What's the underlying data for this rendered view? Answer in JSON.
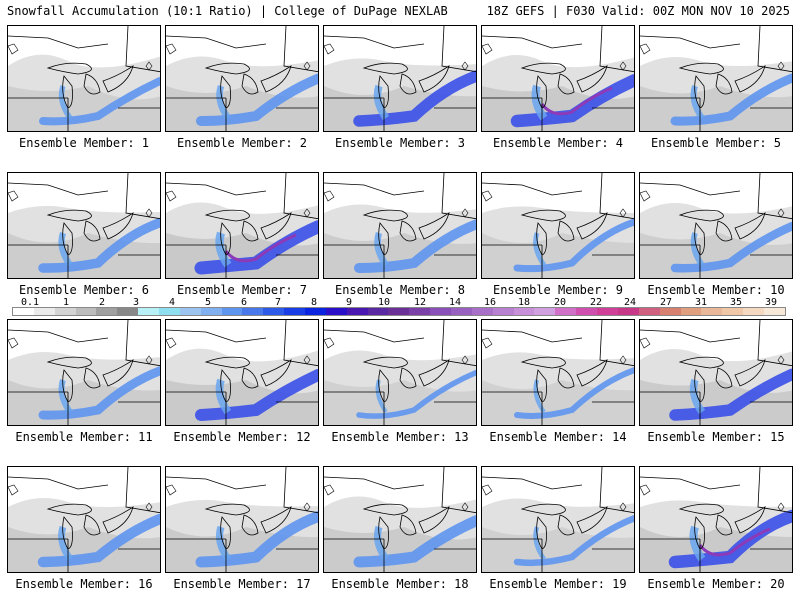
{
  "header": {
    "title_left": "Snowfall Accumulation (10:1 Ratio) | College of DuPage NEXLAB",
    "title_right": "18Z GEFS | F030 Valid: 00Z MON NOV 10 2025"
  },
  "map": {
    "icon": "great-lakes-map-icon"
  },
  "members": [
    {
      "label": "Ensemble Member: 1",
      "intensity": 0.4
    },
    {
      "label": "Ensemble Member: 2",
      "intensity": 0.6
    },
    {
      "label": "Ensemble Member: 3",
      "intensity": 0.75
    },
    {
      "label": "Ensemble Member: 4",
      "intensity": 0.85
    },
    {
      "label": "Ensemble Member: 5",
      "intensity": 0.5
    },
    {
      "label": "Ensemble Member: 6",
      "intensity": 0.55
    },
    {
      "label": "Ensemble Member: 7",
      "intensity": 0.9
    },
    {
      "label": "Ensemble Member: 8",
      "intensity": 0.6
    },
    {
      "label": "Ensemble Member: 9",
      "intensity": 0.3
    },
    {
      "label": "Ensemble Member: 10",
      "intensity": 0.45
    },
    {
      "label": "Ensemble Member: 11",
      "intensity": 0.5
    },
    {
      "label": "Ensemble Member: 12",
      "intensity": 0.8
    },
    {
      "label": "Ensemble Member: 13",
      "intensity": 0.15
    },
    {
      "label": "Ensemble Member: 14",
      "intensity": 0.2
    },
    {
      "label": "Ensemble Member: 15",
      "intensity": 0.75
    },
    {
      "label": "Ensemble Member: 16",
      "intensity": 0.65
    },
    {
      "label": "Ensemble Member: 17",
      "intensity": 0.7
    },
    {
      "label": "Ensemble Member: 18",
      "intensity": 0.7
    },
    {
      "label": "Ensemble Member: 19",
      "intensity": 0.25
    },
    {
      "label": "Ensemble Member: 20",
      "intensity": 0.85
    }
  ],
  "colorbar": {
    "ticks": [
      "0.1",
      "1",
      "2",
      "3",
      "4",
      "5",
      "6",
      "7",
      "8",
      "9",
      "10",
      "12",
      "14",
      "16",
      "18",
      "20",
      "22",
      "24",
      "27",
      "31",
      "35",
      "39"
    ],
    "colors": [
      "#ffffff",
      "#ebebeb",
      "#d4d4d4",
      "#bdbdbd",
      "#a0a0a0",
      "#888888",
      "#b8f0f8",
      "#8ee0f0",
      "#9cc4f0",
      "#80b0f0",
      "#5e95ef",
      "#4878ea",
      "#2e5ae8",
      "#1a3ee6",
      "#0a24e0",
      "#2a10c8",
      "#4a18b0",
      "#5a28a0",
      "#6a3098",
      "#7a40a8",
      "#8850b8",
      "#9860c0",
      "#a870c8",
      "#b880d0",
      "#c890d8",
      "#d0a0e0",
      "#d070c8",
      "#d050b0",
      "#d04098",
      "#c83888",
      "#d06080",
      "#d88070",
      "#e0a080",
      "#e8b898",
      "#f0c8a8",
      "#f4d8c0",
      "#f8e8d8"
    ]
  }
}
